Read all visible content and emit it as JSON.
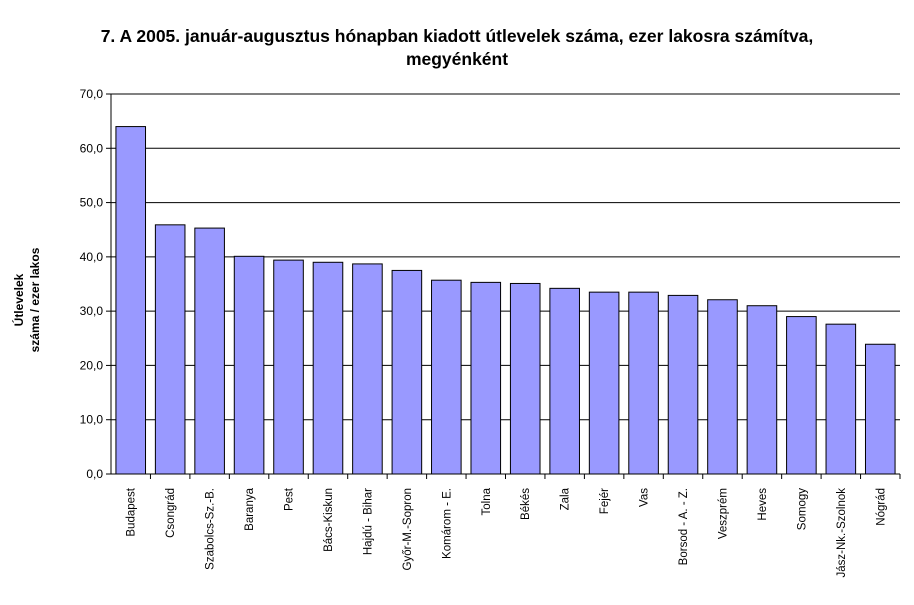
{
  "chart_data": {
    "type": "bar",
    "title_line1": "7. A 2005. január-augusztus hónapban kiadott útlevelek száma, ezer lakosra számítva,",
    "title_line2": "megyénként",
    "ylabel_line1": "Útlevelek",
    "ylabel_line2": "száma / ezer lakos",
    "xlabel": "",
    "ylim": [
      0,
      70
    ],
    "yticks": [
      "0,0",
      "10,0",
      "20,0",
      "30,0",
      "40,0",
      "50,0",
      "60,0",
      "70,0"
    ],
    "grid": true,
    "bar_color": "#9999ff",
    "categories": [
      "Budapest",
      "Csongrád",
      "Szabolcs-Sz.-B.",
      "Baranya",
      "Pest",
      "Bács-Kiskun",
      "Hajdú - Bihar",
      "Győr-M.-Sopron",
      "Komárom - E.",
      "Tolna",
      "Békés",
      "Zala",
      "Fejér",
      "Vas",
      "Borsod - A. - Z.",
      "Veszprém",
      "Heves",
      "Somogy",
      "Jász-Nk.-Szolnok",
      "Nógrád"
    ],
    "values": [
      64.0,
      45.9,
      45.3,
      40.1,
      39.4,
      39.0,
      38.7,
      37.5,
      35.7,
      35.3,
      35.1,
      34.2,
      33.5,
      33.5,
      32.9,
      32.1,
      31.0,
      29.0,
      27.6,
      23.9
    ]
  }
}
